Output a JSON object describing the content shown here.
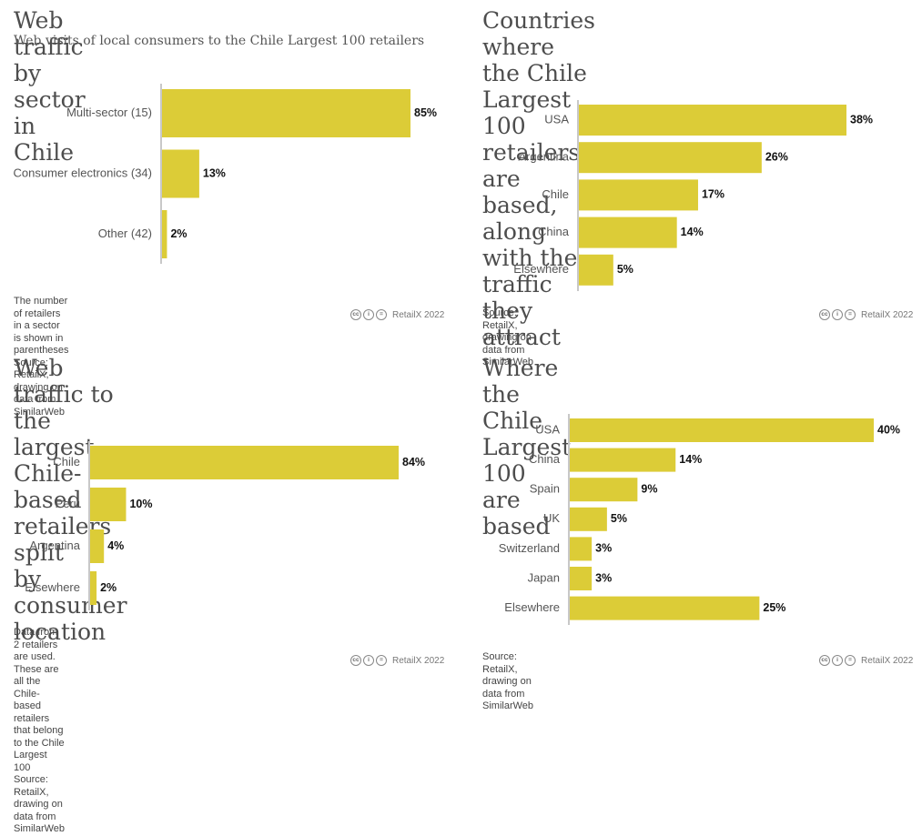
{
  "panels": [
    {
      "title": "Web traffic by sector in Chile",
      "subtitle": "Web visits of local consumers to the Chile Largest 100 retailers",
      "footnote": "The number of retailers in a sector is shown in parentheses\nSource: RetailX, drawing on data from SimilarWeb",
      "credit": "RetailX 2022"
    },
    {
      "title": "Countries where the Chile Largest 100\nretailers are based, along with the\ntraffic they attract",
      "subtitle": "",
      "footnote": "Source: RetailX, drawing on data from SimilarWeb",
      "credit": "RetailX 2022"
    },
    {
      "title": "Web traffic to the largest\nChile-based retailers split\nby consumer location",
      "subtitle": "",
      "footnote": "Data from 2 retailers are used. These are all the Chile-based retailers\nthat belong to the Chile Largest 100\nSource: RetailX, drawing on data from SimilarWeb",
      "credit": "RetailX 2022"
    },
    {
      "title": "Where the Chile Largest 100\nare based",
      "subtitle": "",
      "footnote": "Source: RetailX, drawing on data from SimilarWeb",
      "credit": "RetailX 2022"
    }
  ],
  "colors": {
    "bar": "#dccc37",
    "axis": "#c8c8c8"
  },
  "chart_data": [
    {
      "type": "bar",
      "orientation": "horizontal",
      "title": "Web traffic by sector in Chile",
      "subtitle": "Web visits of local consumers to the Chile Largest 100 retailers",
      "categories": [
        "Multi-sector (15)",
        "Consumer electronics (34)",
        "Other (42)"
      ],
      "values": [
        85,
        13,
        2
      ],
      "value_labels": [
        "85%",
        "13%",
        "2%"
      ],
      "unit": "%",
      "xlim": [
        0,
        85
      ]
    },
    {
      "type": "bar",
      "orientation": "horizontal",
      "title": "Countries where the Chile Largest 100 retailers are based, along with the traffic they attract",
      "categories": [
        "USA",
        "Argentina",
        "Chile",
        "China",
        "Elsewhere"
      ],
      "values": [
        38,
        26,
        17,
        14,
        5
      ],
      "value_labels": [
        "38%",
        "26%",
        "17%",
        "14%",
        "5%"
      ],
      "unit": "%",
      "xlim": [
        0,
        38
      ]
    },
    {
      "type": "bar",
      "orientation": "horizontal",
      "title": "Web traffic to the largest Chile-based retailers split by consumer location",
      "categories": [
        "Chile",
        "Peru",
        "Argentina",
        "Elsewhere"
      ],
      "values": [
        84,
        10,
        4,
        2
      ],
      "value_labels": [
        "84%",
        "10%",
        "4%",
        "2%"
      ],
      "unit": "%",
      "xlim": [
        0,
        84
      ]
    },
    {
      "type": "bar",
      "orientation": "horizontal",
      "title": "Where the Chile Largest 100 are based",
      "categories": [
        "USA",
        "China",
        "Spain",
        "UK",
        "Switzerland",
        "Japan",
        "Elsewhere"
      ],
      "values": [
        40,
        14,
        9,
        5,
        3,
        3,
        25
      ],
      "value_labels": [
        "40%",
        "14%",
        "9%",
        "5%",
        "3%",
        "3%",
        "25%"
      ],
      "unit": "%",
      "xlim": [
        0,
        40
      ]
    }
  ]
}
